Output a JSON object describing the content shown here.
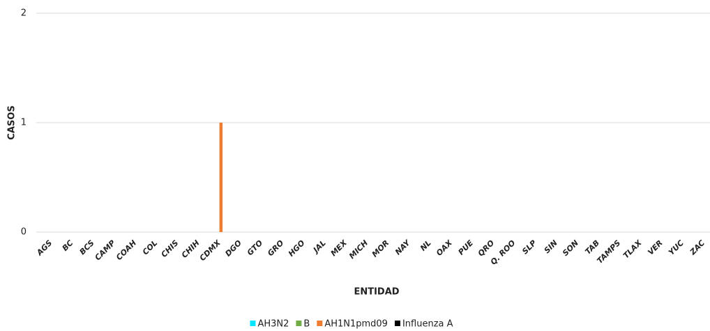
{
  "chart_data": {
    "type": "bar",
    "x_label": "ENTIDAD",
    "y_label": "CASOS",
    "categories": [
      "AGS",
      "BC",
      "BCS",
      "CAMP",
      "COAH",
      "COL",
      "CHIS",
      "CHIH",
      "CDMX",
      "DGO",
      "GTO",
      "GRO",
      "HGO",
      "JAL",
      "MEX",
      "MICH",
      "MOR",
      "NAY",
      "NL",
      "OAX",
      "PUE",
      "QRO",
      "Q. ROO",
      "SLP",
      "SIN",
      "SON",
      "TAB",
      "TAMPS",
      "TLAX",
      "VER",
      "YUC",
      "ZAC"
    ],
    "series": [
      {
        "name": "AH3N2",
        "color": "#00e5ff",
        "values": [
          0,
          0,
          0,
          0,
          0,
          0,
          0,
          0,
          0,
          0,
          0,
          0,
          0,
          0,
          0,
          0,
          0,
          0,
          0,
          0,
          0,
          0,
          0,
          0,
          0,
          0,
          0,
          0,
          0,
          0,
          0,
          0
        ]
      },
      {
        "name": "B",
        "color": "#70ad47",
        "values": [
          0,
          0,
          0,
          0,
          0,
          0,
          0,
          0,
          0,
          0,
          0,
          0,
          0,
          0,
          0,
          0,
          0,
          0,
          0,
          0,
          0,
          0,
          0,
          0,
          0,
          0,
          0,
          0,
          0,
          0,
          0,
          0
        ]
      },
      {
        "name": "AH1N1pmd09",
        "color": "#ed7d31",
        "values": [
          0,
          0,
          0,
          0,
          0,
          0,
          0,
          0,
          1,
          0,
          0,
          0,
          0,
          0,
          0,
          0,
          0,
          0,
          0,
          0,
          0,
          0,
          0,
          0,
          0,
          0,
          0,
          0,
          0,
          0,
          0,
          0
        ]
      },
      {
        "name": "Influenza A",
        "color": "#000000",
        "values": [
          0,
          0,
          0,
          0,
          0,
          0,
          0,
          0,
          0,
          0,
          0,
          0,
          0,
          0,
          0,
          0,
          0,
          0,
          0,
          0,
          0,
          0,
          0,
          0,
          0,
          0,
          0,
          0,
          0,
          0,
          0,
          0
        ]
      }
    ],
    "ylim": [
      0,
      2
    ],
    "yticks": [
      0,
      1,
      2
    ],
    "grid": true,
    "legend": "bottom"
  }
}
